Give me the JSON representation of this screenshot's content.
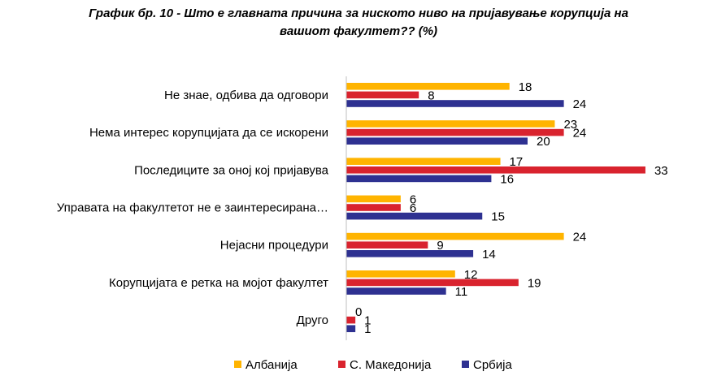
{
  "chart_data": {
    "type": "bar",
    "orientation": "horizontal",
    "title_line1": "График бр. 10 - Што е главната причина за ниското ниво на пријавување корупција на",
    "title_line2": "вашиот факултет?? (%)",
    "categories": [
      "Не знае, одбива да одговори",
      "Нема интерес корупцијата да се искорени",
      "Последиците за оној кој пријавува",
      "Управата на факултетот не е заинтересирана…",
      "Нејасни процедури",
      "Корупцијата е ретка на мојот факултет",
      "Друго"
    ],
    "series": [
      {
        "name": "Албанија",
        "color": "#FFB400",
        "values": [
          18,
          23,
          17,
          6,
          24,
          12,
          0
        ]
      },
      {
        "name": "С. Македонија",
        "color": "#D9232E",
        "values": [
          8,
          24,
          33,
          6,
          9,
          19,
          1
        ]
      },
      {
        "name": "Србија",
        "color": "#2E3191",
        "values": [
          24,
          20,
          16,
          15,
          14,
          11,
          1
        ]
      }
    ],
    "xlim": [
      0,
      33
    ],
    "grid": false,
    "legend_position": "bottom"
  }
}
